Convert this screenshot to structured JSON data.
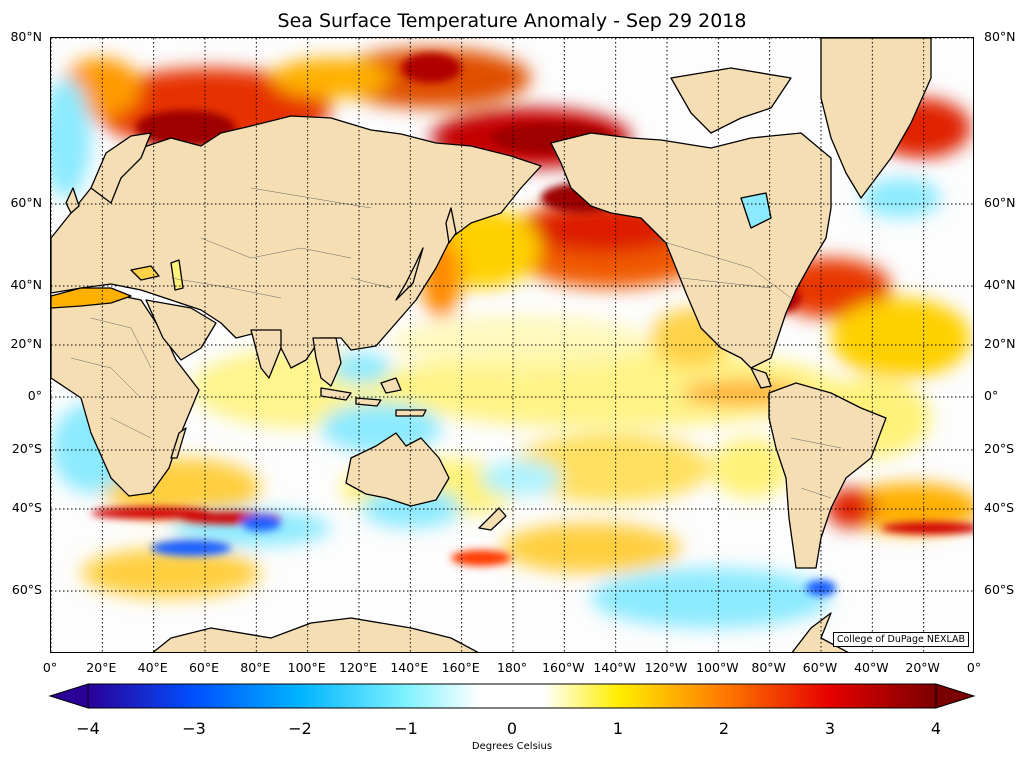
{
  "title": "Sea Surface Temperature Anomaly - Sep 29 2018",
  "credit": "College of DuPage NEXLAB",
  "map": {
    "latitude_labels": [
      {
        "value": 80,
        "label": "80°N"
      },
      {
        "value": 60,
        "label": "60°N"
      },
      {
        "value": 40,
        "label": "40°N"
      },
      {
        "value": 20,
        "label": "20°N"
      },
      {
        "value": 0,
        "label": "0°"
      },
      {
        "value": -20,
        "label": "20°S"
      },
      {
        "value": -40,
        "label": "40°S"
      },
      {
        "value": -60,
        "label": "60°S"
      }
    ],
    "longitude_labels": [
      {
        "value": 0,
        "label": "0°"
      },
      {
        "value": 20,
        "label": "20°E"
      },
      {
        "value": 40,
        "label": "40°E"
      },
      {
        "value": 60,
        "label": "60°E"
      },
      {
        "value": 80,
        "label": "80°E"
      },
      {
        "value": 100,
        "label": "100°E"
      },
      {
        "value": 120,
        "label": "120°E"
      },
      {
        "value": 140,
        "label": "140°E"
      },
      {
        "value": 160,
        "label": "160°E"
      },
      {
        "value": 180,
        "label": "180°"
      },
      {
        "value": 200,
        "label": "160°W"
      },
      {
        "value": 220,
        "label": "140°W"
      },
      {
        "value": 240,
        "label": "120°W"
      },
      {
        "value": 260,
        "label": "100°W"
      },
      {
        "value": 280,
        "label": "80°W"
      },
      {
        "value": 300,
        "label": "60°W"
      },
      {
        "value": 320,
        "label": "40°W"
      },
      {
        "value": 340,
        "label": "20°W"
      },
      {
        "value": 360,
        "label": "0°"
      }
    ],
    "land_color": "#f5deb3",
    "coast_color": "#000000"
  },
  "colorbar": {
    "label": "Degrees Celsius",
    "min": -4,
    "max": 4,
    "ticks": [
      {
        "value": -4,
        "label": "−4"
      },
      {
        "value": -3,
        "label": "−3"
      },
      {
        "value": -2,
        "label": "−2"
      },
      {
        "value": -1,
        "label": "−1"
      },
      {
        "value": 0,
        "label": "0"
      },
      {
        "value": 1,
        "label": "1"
      },
      {
        "value": 2,
        "label": "2"
      },
      {
        "value": 3,
        "label": "3"
      },
      {
        "value": 4,
        "label": "4"
      }
    ],
    "stops": [
      {
        "value": -4,
        "color": "#2b0099"
      },
      {
        "value": -3,
        "color": "#0050ff"
      },
      {
        "value": -2,
        "color": "#00b4ff"
      },
      {
        "value": -1,
        "color": "#7ff2ff"
      },
      {
        "value": -0.3,
        "color": "#ffffff"
      },
      {
        "value": 0.3,
        "color": "#ffffff"
      },
      {
        "value": 1,
        "color": "#ffee00"
      },
      {
        "value": 2,
        "color": "#ff7a00"
      },
      {
        "value": 3,
        "color": "#e60000"
      },
      {
        "value": 4,
        "color": "#7a0000"
      }
    ]
  }
}
